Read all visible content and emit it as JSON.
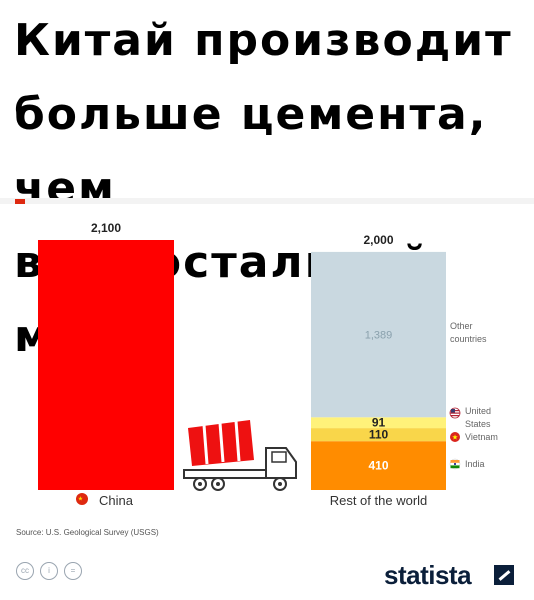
{
  "headline": "Китай производит\nбольше цемента, чем\nвесь остальной мир.",
  "chart_data": {
    "type": "bar",
    "stacked": true,
    "categories": [
      "China",
      "Rest of the world"
    ],
    "totals": [
      2100,
      2000
    ],
    "total_labels": [
      "2,100",
      "2,000"
    ],
    "ylim": [
      0,
      2100
    ],
    "grid": false,
    "legend_placement": "right of second bar",
    "series": [
      {
        "name": "China",
        "values": [
          2100,
          0
        ],
        "label": "",
        "color": "#ff0000"
      },
      {
        "name": "India",
        "values": [
          0,
          410
        ],
        "label": "410",
        "color": "#ff8c00"
      },
      {
        "name": "Vietnam",
        "values": [
          0,
          110
        ],
        "label": "110",
        "color": "#f9d64a"
      },
      {
        "name": "United States",
        "values": [
          0,
          91
        ],
        "label": "91",
        "color": "#fff27a"
      },
      {
        "name": "Other countries",
        "values": [
          0,
          1389
        ],
        "label": "1,389",
        "color": "#c9d8e0"
      }
    ],
    "legend": [
      {
        "lines": [
          "Other",
          "countries"
        ],
        "icon": "none"
      },
      {
        "lines": [
          "United",
          "States"
        ],
        "icon": "us-flag-icon"
      },
      {
        "lines": [
          "Vietnam"
        ],
        "icon": "vietnam-flag-icon"
      },
      {
        "lines": [
          "India"
        ],
        "icon": "india-flag-icon"
      }
    ]
  },
  "footer": {
    "source": "Source: U.S. Geological Survey (USGS)",
    "brand": "statista",
    "license_icons": [
      "cc",
      "i",
      "="
    ]
  },
  "colors": {
    "china_red": "#ff0000",
    "brand_navy": "#0b1f3a"
  }
}
